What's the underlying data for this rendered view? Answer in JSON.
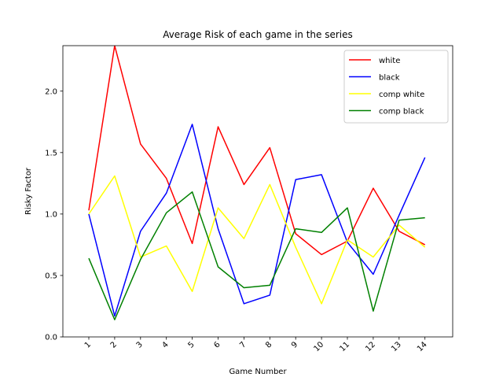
{
  "chart_data": {
    "type": "line",
    "title": "Average Risk of each game in the series",
    "xlabel": "Game Number",
    "ylabel": "Risky Factor",
    "categories": [
      "1",
      "2",
      "3",
      "4",
      "5",
      "6",
      "7",
      "8",
      "9",
      "10",
      "11",
      "12",
      "13",
      "14"
    ],
    "ylim": [
      0,
      2.37
    ],
    "yticks": [
      "0.0",
      "0.5",
      "1.0",
      "1.5",
      "2.0"
    ],
    "ytick_values": [
      0,
      0.5,
      1.0,
      1.5,
      2.0
    ],
    "grid": false,
    "legend_position": "top-right",
    "series": [
      {
        "name": "white",
        "color": "#ff0000",
        "values": [
          1.03,
          2.37,
          1.57,
          1.29,
          0.76,
          1.71,
          1.24,
          1.54,
          0.84,
          0.67,
          0.78,
          1.21,
          0.86,
          0.75
        ]
      },
      {
        "name": "black",
        "color": "#0000ff",
        "values": [
          1.0,
          0.17,
          0.86,
          1.17,
          1.73,
          0.88,
          0.27,
          0.34,
          1.28,
          1.32,
          0.77,
          0.51,
          0.99,
          1.46
        ]
      },
      {
        "name": "comp white",
        "color": "#ffff00",
        "values": [
          1.0,
          1.31,
          0.65,
          0.74,
          0.37,
          1.05,
          0.8,
          1.24,
          0.73,
          0.27,
          0.79,
          0.65,
          0.91,
          0.73
        ]
      },
      {
        "name": "comp black",
        "color": "#008000",
        "values": [
          0.64,
          0.14,
          0.63,
          1.01,
          1.18,
          0.57,
          0.4,
          0.42,
          0.88,
          0.85,
          1.05,
          0.21,
          0.95,
          0.97
        ]
      }
    ]
  }
}
